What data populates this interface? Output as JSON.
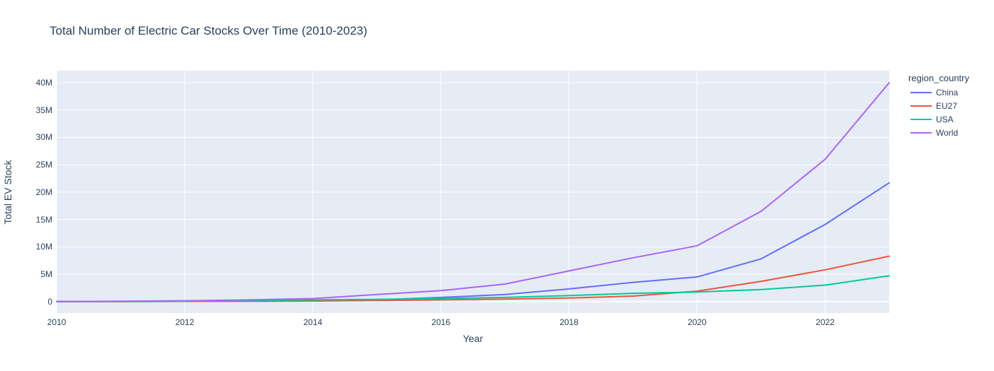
{
  "chart": {
    "text_color": "#2a3f5f",
    "plot_bg_color": "#E5ECF6",
    "grid_color": "#ffffff",
    "paper_color": "#ffffff"
  },
  "chart_data": {
    "type": "line",
    "title": "Total Number of Electric Car Stocks Over Time (2010-2023)",
    "xlabel": "Year",
    "ylabel": "Total EV Stock",
    "x": [
      2010,
      2011,
      2012,
      2013,
      2014,
      2015,
      2016,
      2017,
      2018,
      2019,
      2020,
      2021,
      2022,
      2023
    ],
    "series": [
      {
        "name": "China",
        "color": "#636EFA",
        "values_millions": [
          0.01,
          0.02,
          0.03,
          0.06,
          0.12,
          0.3,
          0.75,
          1.3,
          2.3,
          3.5,
          4.5,
          7.8,
          14.1,
          21.7
        ]
      },
      {
        "name": "EU27",
        "color": "#EF553B",
        "values_millions": [
          0.0,
          0.01,
          0.03,
          0.06,
          0.1,
          0.2,
          0.3,
          0.45,
          0.65,
          1.0,
          1.9,
          3.7,
          5.8,
          8.3
        ]
      },
      {
        "name": "USA",
        "color": "#00CC96",
        "values_millions": [
          0.0,
          0.02,
          0.07,
          0.17,
          0.3,
          0.4,
          0.55,
          0.75,
          1.1,
          1.5,
          1.75,
          2.2,
          3.0,
          4.7
        ]
      },
      {
        "name": "World",
        "color": "#AB63FA",
        "values_millions": [
          0.02,
          0.06,
          0.15,
          0.3,
          0.55,
          1.3,
          2.0,
          3.2,
          5.6,
          8.0,
          10.2,
          16.5,
          26.0,
          40.0
        ]
      }
    ],
    "xticks": [
      {
        "v": 2010,
        "label": "2010"
      },
      {
        "v": 2012,
        "label": "2012"
      },
      {
        "v": 2014,
        "label": "2014"
      },
      {
        "v": 2016,
        "label": "2016"
      },
      {
        "v": 2018,
        "label": "2018"
      },
      {
        "v": 2020,
        "label": "2020"
      },
      {
        "v": 2022,
        "label": "2022"
      }
    ],
    "yticks": [
      {
        "v": 0,
        "label": "0"
      },
      {
        "v": 5,
        "label": "5M"
      },
      {
        "v": 10,
        "label": "10M"
      },
      {
        "v": 15,
        "label": "15M"
      },
      {
        "v": 20,
        "label": "20M"
      },
      {
        "v": 25,
        "label": "25M"
      },
      {
        "v": 30,
        "label": "30M"
      },
      {
        "v": 35,
        "label": "35M"
      },
      {
        "v": 40,
        "label": "40M"
      }
    ],
    "xlim": [
      2010,
      2023
    ],
    "ylim_millions": [
      -2.1,
      42.2
    ],
    "grid": true,
    "legend": {
      "title": "region_country",
      "position": "right"
    }
  }
}
